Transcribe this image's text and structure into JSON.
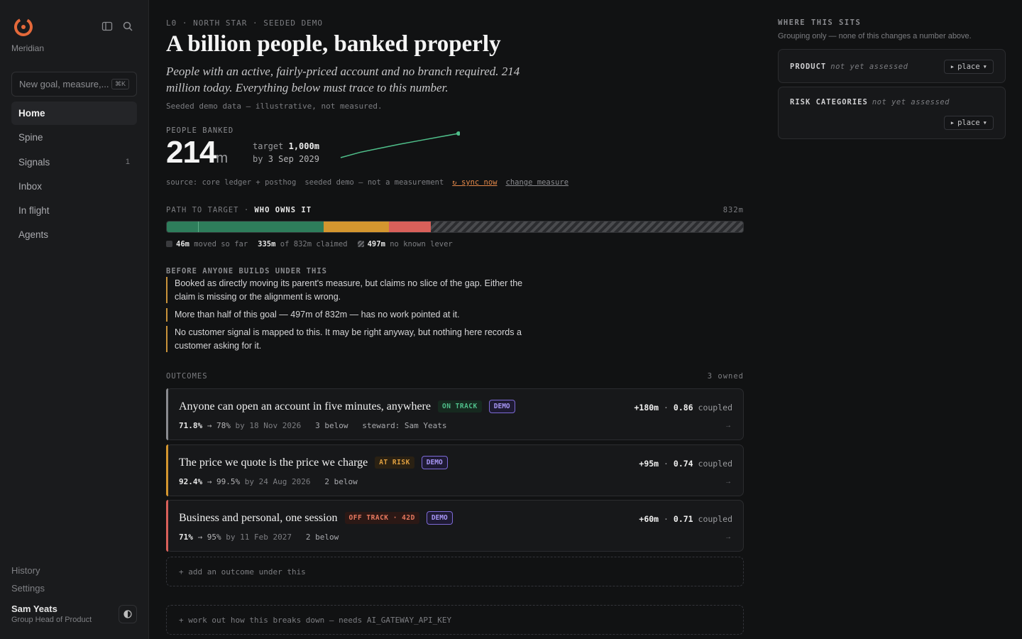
{
  "app": {
    "brand": "Meridian",
    "accent": "#e5693a"
  },
  "search": {
    "placeholder": "New goal, measure,...",
    "shortcut": "⌘K"
  },
  "nav": [
    {
      "label": "Home",
      "active": true
    },
    {
      "label": "Spine"
    },
    {
      "label": "Signals",
      "count": "1"
    },
    {
      "label": "Inbox"
    },
    {
      "label": "In flight"
    },
    {
      "label": "Agents"
    }
  ],
  "footer": {
    "history": "History",
    "settings": "Settings",
    "user_name": "Sam Yeats",
    "user_role": "Group Head of Product"
  },
  "header": {
    "eyebrow": "L0 · NORTH STAR · SEEDED DEMO",
    "title": "A billion people, banked properly",
    "subtitle": "People with an active, fairly-priced account and no branch required. 214 million today. Everything below must trace to this number.",
    "disclaimer": "Seeded demo data — illustrative, not measured."
  },
  "metric": {
    "label": "PEOPLE BANKED",
    "value": "214",
    "unit": "m",
    "target_prefix": "target",
    "target": "1,000m",
    "by_prefix": "by",
    "by_date": "3 Sep 2029",
    "source": "source: core ledger + posthog",
    "note": "seeded demo — not a measurement",
    "sync": "↻ sync now",
    "change": "change measure",
    "trend": [
      160,
      172,
      181,
      190,
      198,
      206,
      214
    ]
  },
  "path": {
    "label": "PATH TO TARGET",
    "owner": "WHO OWNS IT",
    "total": "832m",
    "total_value": 832,
    "segments": [
      {
        "value": 46,
        "color": "#2e7d5b"
      },
      {
        "value": 180,
        "color": "#2e7d5b"
      },
      {
        "value": 95,
        "color": "#d4962f"
      },
      {
        "value": 60,
        "color": "#d9605a"
      }
    ],
    "legend": [
      {
        "value": "46m",
        "text": "moved so far",
        "color": "#3a3b3e"
      },
      {
        "value": "335m",
        "text": "of 832m claimed"
      },
      {
        "value": "497m",
        "text": "no known lever",
        "color": "#5a5b5e"
      }
    ]
  },
  "warnings": {
    "heading": "BEFORE ANYONE BUILDS UNDER THIS",
    "items": [
      "Booked as directly moving its parent's measure, but claims no slice of the gap. Either the claim is missing or the alignment is wrong.",
      "More than half of this goal — 497m of 832m — has no work pointed at it.",
      "No customer signal is mapped to this. It may be right anyway, but nothing here records a customer asking for it."
    ]
  },
  "outcomes": {
    "heading": "OUTCOMES",
    "count": "3 owned",
    "items": [
      {
        "title": "Anyone can open an account in five minutes, anywhere",
        "status": "ON TRACK",
        "status_color": "#4fbf8a",
        "status_bg": "#16291f",
        "accent": "#8a8b8f",
        "demo": "DEMO",
        "from": "71.8%",
        "to": "→ 78%",
        "by": "by 18 Nov 2026",
        "below": "3 below",
        "steward": "steward: Sam Yeats",
        "impact": "+180m",
        "coupled": "0.86",
        "coupled_label": "coupled",
        "arrow": "→"
      },
      {
        "title": "The price we quote is the price we charge",
        "status": "AT RISK",
        "status_color": "#e0a040",
        "status_bg": "#2a2113",
        "accent": "#d4962f",
        "demo": "DEMO",
        "from": "92.4%",
        "to": "→ 99.5%",
        "by": "by 24 Aug 2026",
        "below": "2 below",
        "steward": "",
        "impact": "+95m",
        "coupled": "0.74",
        "coupled_label": "coupled",
        "arrow": "→"
      },
      {
        "title": "Business and personal, one session",
        "status": "OFF TRACK · 42D",
        "status_color": "#e8795f",
        "status_bg": "#2b1815",
        "accent": "#d9605a",
        "demo": "DEMO",
        "from": "71%",
        "to": "→ 95%",
        "by": "by 11 Feb 2027",
        "below": "2 below",
        "steward": "",
        "impact": "+60m",
        "coupled": "0.71",
        "coupled_label": "coupled",
        "arrow": "→"
      }
    ],
    "add": "+ add an outcome under this",
    "breakdown": "+ work out how this breaks down — needs AI_GATEWAY_API_KEY"
  },
  "right": {
    "heading": "WHERE THIS SITS",
    "sub": "Grouping only — none of this changes a number above.",
    "cards": [
      {
        "label": "PRODUCT",
        "status": "not yet assessed",
        "button": "place"
      },
      {
        "label": "RISK CATEGORIES",
        "status": "not yet assessed",
        "button": "place"
      }
    ]
  }
}
